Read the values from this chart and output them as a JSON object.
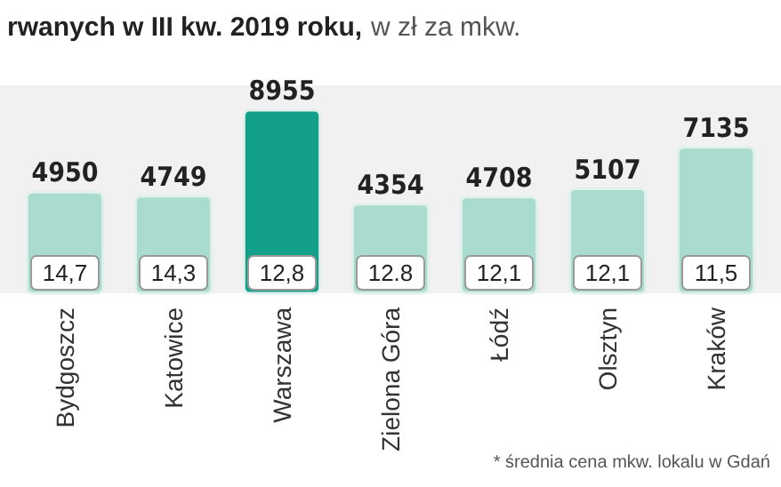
{
  "chart_data": {
    "type": "bar",
    "title": "rwanych w III kw. 2019 roku,",
    "subtitle": "w zł za mkw.",
    "categories": [
      "Bydgoszcz",
      "Katowice",
      "Warszawa",
      "Zielona Góra",
      "Łódź",
      "Olsztyn",
      "Kraków"
    ],
    "values": [
      4950,
      4749,
      8955,
      4354,
      4708,
      5107,
      7135
    ],
    "colors": [
      "#a9dccf",
      "#a9dccf",
      "#13a08b",
      "#a9dccf",
      "#a9dccf",
      "#a9dccf",
      "#a9dccf"
    ],
    "data_labels": true,
    "annotations": [
      {
        "text": "14,7",
        "x": "Bydgoszcz",
        "y": 0
      },
      {
        "text": "14,3",
        "x": "Katowice",
        "y": 0
      },
      {
        "text": "12,8",
        "x": "Warszawa",
        "y": 0
      },
      {
        "text": "12.8",
        "x": "Zielona Góra",
        "y": 0
      },
      {
        "text": "12,1",
        "x": "Łódź",
        "y": 0
      },
      {
        "text": "12,1",
        "x": "Olsztyn",
        "y": 0
      },
      {
        "text": "11,5",
        "x": "Kraków",
        "y": 0
      },
      "* średnia cena mkw. lokalu w Gdań"
    ]
  }
}
